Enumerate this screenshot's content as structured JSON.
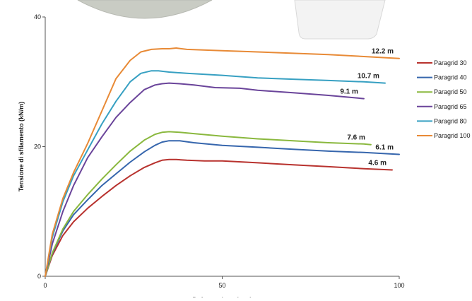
{
  "chart_data": {
    "type": "line",
    "title": "",
    "xlabel": "Deformazione (mm)",
    "ylabel": "Tensione di sfilamento (kN/m)",
    "xlim": [
      0,
      100
    ],
    "ylim": [
      0,
      40
    ],
    "xticks": [
      0,
      50,
      100
    ],
    "yticks": [
      0,
      20,
      40
    ],
    "grid": false,
    "legend_position": "right",
    "series": [
      {
        "name": "Paragrid 30",
        "color": "#b8322e",
        "end_label": "4.6 m",
        "x": [
          0,
          2,
          5,
          8,
          12,
          16,
          20,
          24,
          28,
          31,
          33,
          35,
          37,
          40,
          45,
          50,
          60,
          70,
          80,
          90,
          98
        ],
        "y": [
          0,
          3.2,
          6.3,
          8.4,
          10.5,
          12.3,
          14.0,
          15.5,
          16.8,
          17.5,
          17.9,
          18.0,
          18.0,
          17.9,
          17.8,
          17.8,
          17.5,
          17.2,
          16.9,
          16.6,
          16.4
        ]
      },
      {
        "name": "Paragrid 40",
        "color": "#3666ad",
        "end_label": "6.1 m",
        "x": [
          0,
          2,
          5,
          8,
          12,
          16,
          20,
          24,
          28,
          31,
          33,
          35,
          38,
          42,
          50,
          60,
          70,
          80,
          90,
          100
        ],
        "y": [
          0,
          3.5,
          7.0,
          9.5,
          11.8,
          14.0,
          15.8,
          17.6,
          19.2,
          20.2,
          20.7,
          20.9,
          20.9,
          20.6,
          20.2,
          19.9,
          19.6,
          19.3,
          19.1,
          18.8
        ]
      },
      {
        "name": "Paragrid 50",
        "color": "#8ab83e",
        "end_label": "7.6 m",
        "x": [
          0,
          2,
          5,
          8,
          12,
          16,
          20,
          24,
          28,
          31,
          33,
          35,
          38,
          42,
          50,
          60,
          70,
          80,
          90,
          92
        ],
        "y": [
          0,
          3.6,
          7.3,
          10.0,
          12.6,
          15.0,
          17.2,
          19.3,
          21.0,
          21.9,
          22.2,
          22.3,
          22.2,
          22.0,
          21.6,
          21.2,
          20.9,
          20.6,
          20.4,
          20.3
        ]
      },
      {
        "name": "Paragrid 65",
        "color": "#6a449a",
        "end_label": "9.1 m",
        "x": [
          0,
          2,
          5,
          8,
          12,
          16,
          20,
          24,
          28,
          31,
          33,
          35,
          38,
          42,
          48,
          55,
          60,
          70,
          80,
          90
        ],
        "y": [
          0,
          5.0,
          10.0,
          14.0,
          18.3,
          21.5,
          24.5,
          26.8,
          28.8,
          29.5,
          29.7,
          29.8,
          29.7,
          29.5,
          29.1,
          29.0,
          28.7,
          28.3,
          27.9,
          27.4
        ]
      },
      {
        "name": "Paragrid 80",
        "color": "#37a0c2",
        "end_label": "10.7 m",
        "x": [
          0,
          2,
          5,
          8,
          12,
          16,
          20,
          24,
          27,
          30,
          32,
          35,
          40,
          50,
          60,
          70,
          80,
          90,
          96
        ],
        "y": [
          0,
          6.0,
          11.5,
          15.5,
          19.5,
          23.5,
          27.0,
          30.0,
          31.3,
          31.7,
          31.7,
          31.5,
          31.3,
          31.0,
          30.6,
          30.4,
          30.2,
          30.0,
          29.8
        ]
      },
      {
        "name": "Paragrid 100",
        "color": "#e88a36",
        "end_label": "12.2 m",
        "x": [
          0,
          2,
          5,
          8,
          12,
          16,
          20,
          24,
          27,
          30,
          33,
          35,
          37,
          40,
          50,
          60,
          70,
          80,
          90,
          100
        ],
        "y": [
          0,
          6.5,
          12.0,
          16.0,
          20.5,
          25.5,
          30.5,
          33.3,
          34.6,
          35.0,
          35.1,
          35.1,
          35.2,
          35.0,
          34.8,
          34.6,
          34.4,
          34.2,
          33.9,
          33.6
        ]
      }
    ]
  }
}
